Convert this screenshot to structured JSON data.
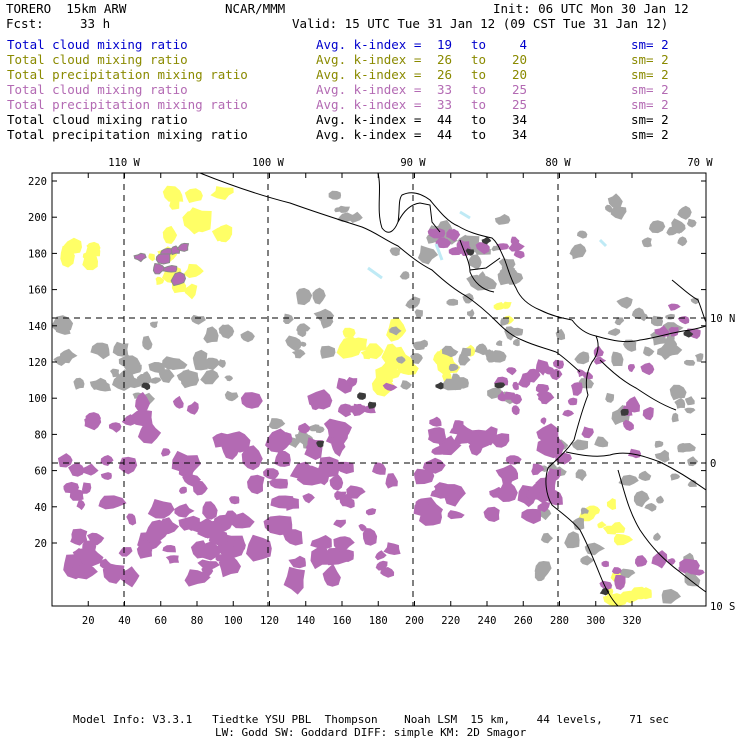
{
  "header": {
    "model": "TORERO  15km ARW",
    "org": "NCAR/MMM",
    "init": "Init: 06 UTC Mon 30 Jan 12",
    "fcst_label": "Fcst:",
    "fcst_value": "33 h",
    "valid": "Valid: 15 UTC Tue 31 Jan 12 (09 CST Tue 31 Jan 12)"
  },
  "legend": [
    {
      "field": "Total cloud mixing ratio",
      "index": "Avg. k-index =",
      "v1": "19",
      "to": "to",
      "v2": "4",
      "sm": "sm= 2",
      "color": "#0000cc"
    },
    {
      "field": "Total cloud mixing ratio",
      "index": "Avg. k-index =",
      "v1": "26",
      "to": "to",
      "v2": "20",
      "sm": "sm= 2",
      "color": "#8a8a00"
    },
    {
      "field": "Total precipitation mixing ratio",
      "index": "Avg. k-index =",
      "v1": "26",
      "to": "to",
      "v2": "20",
      "sm": "sm= 2",
      "color": "#8a8a00"
    },
    {
      "field": "Total cloud mixing ratio",
      "index": "Avg. k-index =",
      "v1": "33",
      "to": "to",
      "v2": "25",
      "sm": "sm= 2",
      "color": "#b36ab3"
    },
    {
      "field": "Total precipitation mixing ratio",
      "index": "Avg. k-index =",
      "v1": "33",
      "to": "to",
      "v2": "25",
      "sm": "sm= 2",
      "color": "#b36ab3"
    },
    {
      "field": "Total cloud mixing ratio",
      "index": "Avg. k-index =",
      "v1": "44",
      "to": "to",
      "v2": "34",
      "sm": "sm= 2",
      "color": "#000000"
    },
    {
      "field": "Total precipitation mixing ratio",
      "index": "Avg. k-index =",
      "v1": "44",
      "to": "to",
      "v2": "34",
      "sm": "sm= 2",
      "color": "#000000"
    }
  ],
  "map": {
    "lon_labels": [
      "110 W",
      "100 W",
      "90 W",
      "80 W",
      "70 W"
    ],
    "lat_labels": [
      "10 N",
      "0",
      "10 S"
    ],
    "x_ticks": [
      "20",
      "40",
      "60",
      "80",
      "100",
      "120",
      "140",
      "160",
      "180",
      "200",
      "220",
      "240",
      "260",
      "280",
      "300",
      "320"
    ],
    "y_ticks": [
      "220",
      "200",
      "180",
      "160",
      "140",
      "120",
      "100",
      "80",
      "60",
      "40",
      "20"
    ],
    "shading_colors": {
      "light": "#ffff66",
      "purple": "#b36ab3",
      "gray": "#a6a6a6",
      "dark": "#3a3a3a",
      "cyan": "#bfeaf5"
    }
  },
  "footer": {
    "line1": "Model Info: V3.3.1   Tiedtke YSU PBL  Thompson    Noah LSM  15 km,    44 levels,    71 sec",
    "line2": "LW: Godd SW: Goddard DIFF: simple KM: 2D Smagor"
  }
}
